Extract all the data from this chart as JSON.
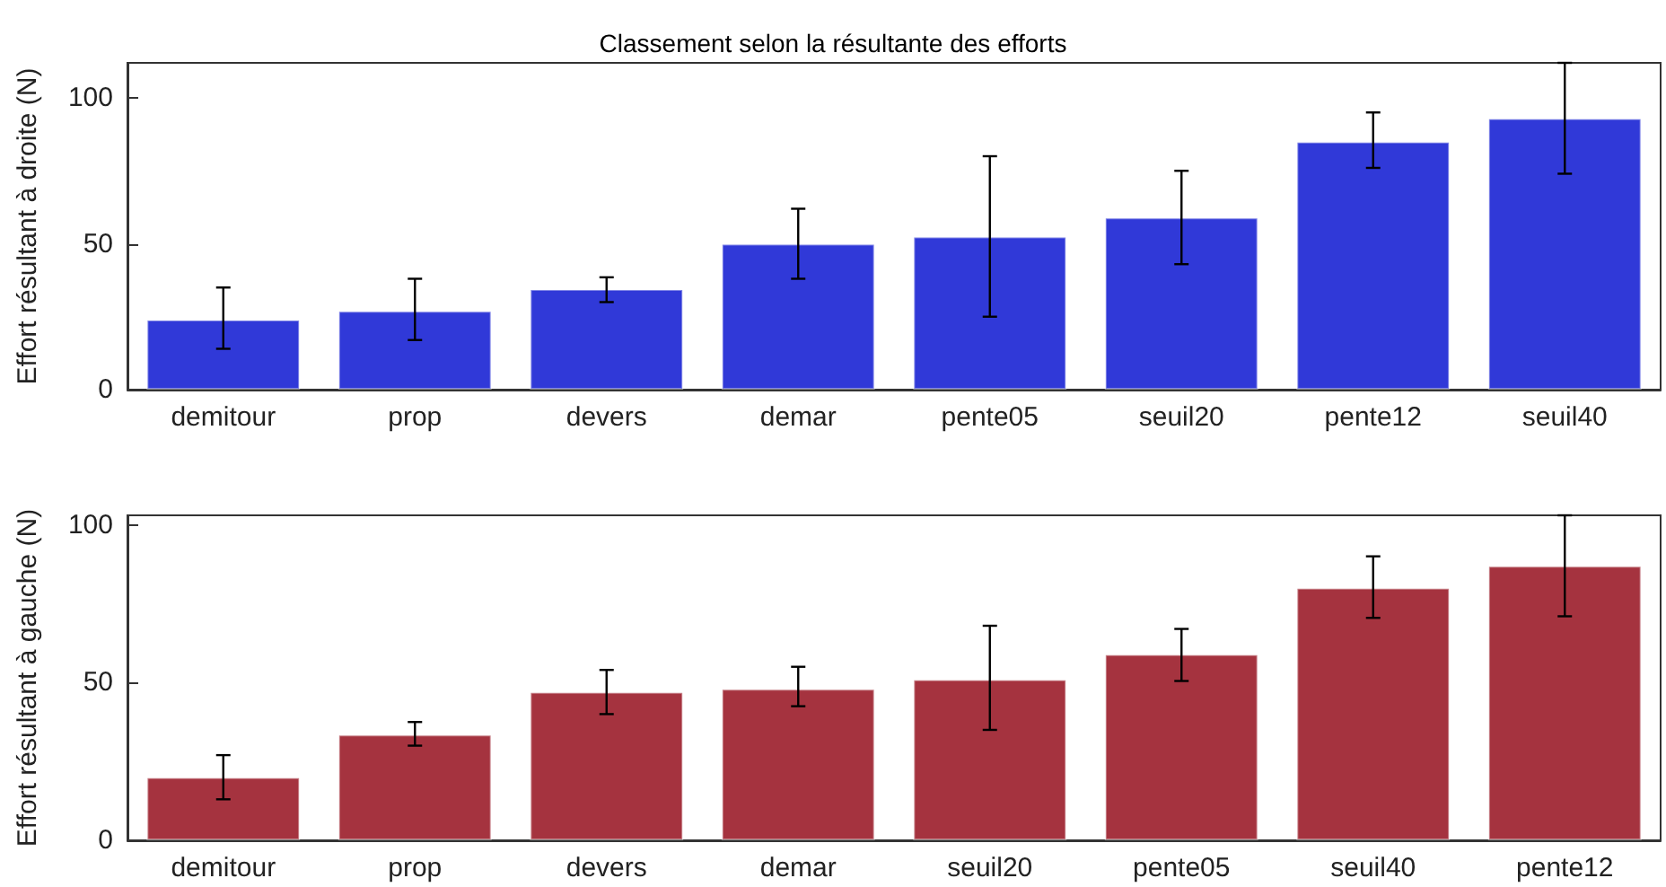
{
  "chart_data": [
    {
      "type": "bar",
      "title": "Classement selon la résultante des efforts",
      "ylabel": "Effort résultant à droite (N)",
      "categories": [
        "demitour",
        "prop",
        "devers",
        "demar",
        "pente05",
        "seuil20",
        "pente12",
        "seuil40"
      ],
      "series": [
        {
          "color": "#3039d8",
          "values": [
            24,
            27,
            34.5,
            50,
            52.5,
            59,
            85,
            93
          ],
          "errors": [
            [
              14,
              35
            ],
            [
              17,
              38
            ],
            [
              30,
              38.5
            ],
            [
              38,
              62
            ],
            [
              25,
              80
            ],
            [
              43,
              75
            ],
            [
              76,
              95
            ],
            [
              74,
              112
            ]
          ]
        }
      ],
      "ylim": [
        0,
        112
      ],
      "yticks": [
        0,
        50,
        100
      ],
      "grid": false
    },
    {
      "type": "bar",
      "ylabel": "Effort résultant à gauche (N)",
      "categories": [
        "demitour",
        "prop",
        "devers",
        "demar",
        "seuil20",
        "pente05",
        "seuil40",
        "pente12"
      ],
      "series": [
        {
          "color": "#a5333f",
          "values": [
            20,
            33.5,
            47,
            48,
            51,
            59,
            80,
            87
          ],
          "errors": [
            [
              13,
              27
            ],
            [
              30,
              37.5
            ],
            [
              40,
              54
            ],
            [
              42.5,
              55
            ],
            [
              35,
              68
            ],
            [
              50.5,
              67
            ],
            [
              70.5,
              90
            ],
            [
              71,
              103
            ]
          ]
        }
      ],
      "ylim": [
        0,
        103
      ],
      "yticks": [
        0,
        50,
        100
      ],
      "grid": false
    }
  ]
}
